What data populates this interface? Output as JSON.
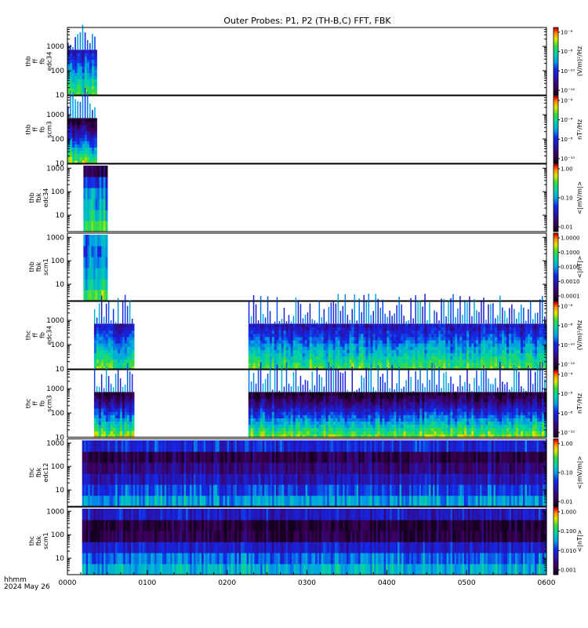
{
  "chart_data": {
    "type": "heatmap",
    "title": "Outer Probes: P1, P2 (TH-B,C) FFT, FBK",
    "time_unit_label": "hhmm",
    "date_label": "2024 May 26",
    "x_ticks": [
      "0000",
      "0100",
      "0200",
      "0300",
      "0400",
      "0500",
      "0600"
    ],
    "x_range_minutes": [
      0,
      360
    ],
    "panels": [
      {
        "ylabel": [
          "thb",
          "ff",
          "fb",
          "edc34"
        ],
        "yticks": [
          "10",
          "100",
          "1000"
        ],
        "ylim": [
          10,
          6000
        ],
        "scale": "log",
        "colorbar": {
          "label": "(V/m)²/Hz",
          "ticks": [
            "10⁻⁶",
            "10⁻⁸",
            "10⁻¹⁰",
            "10⁻¹²"
          ]
        },
        "kind": "fft-e",
        "data_intervals_minutes": [
          [
            0,
            22
          ]
        ]
      },
      {
        "ylabel": [
          "thb",
          "ff",
          "fb",
          "scm3"
        ],
        "yticks": [
          "10",
          "100",
          "1000"
        ],
        "ylim": [
          10,
          6000
        ],
        "scale": "log",
        "colorbar": {
          "label": "nT²/Hz",
          "ticks": [
            "10⁻⁴",
            "10⁻⁶",
            "10⁻⁸",
            "10⁻¹⁰"
          ]
        },
        "kind": "fft-b",
        "data_intervals_minutes": [
          [
            0,
            22
          ]
        ]
      },
      {
        "ylabel": [
          "thb",
          "fbk",
          "edc34"
        ],
        "yticks": [
          "10",
          "100",
          "1000"
        ],
        "ylim": [
          2,
          1500
        ],
        "scale": "log",
        "colorbar": {
          "label": "<|mV/m|>",
          "ticks": [
            "1.00",
            "0.10",
            "0.01"
          ]
        },
        "kind": "fbk-e-short",
        "data_intervals_minutes": [
          [
            12,
            30
          ]
        ]
      },
      {
        "ylabel": [
          "thb",
          "fbk",
          "scm1"
        ],
        "yticks": [
          "10",
          "100",
          "1000"
        ],
        "ylim": [
          2,
          1500
        ],
        "scale": "log",
        "colorbar": {
          "label": "<|nT|>",
          "ticks": [
            "1.0000",
            "0.1000",
            "0.0100",
            "0.0010",
            "0.0001"
          ]
        },
        "kind": "fbk-b-short",
        "data_intervals_minutes": [
          [
            12,
            30
          ]
        ]
      },
      {
        "ylabel": [
          "thc",
          "ff",
          "fb",
          "edc34"
        ],
        "yticks": [
          "10",
          "100",
          "1000"
        ],
        "ylim": [
          10,
          6000
        ],
        "scale": "log",
        "colorbar": {
          "label": "(V/m)²/Hz",
          "ticks": [
            "10⁻⁶",
            "10⁻⁸",
            "10⁻¹⁰",
            "10⁻¹²"
          ]
        },
        "kind": "fft-e",
        "data_intervals_minutes": [
          [
            20,
            50
          ],
          [
            136,
            360
          ]
        ]
      },
      {
        "ylabel": [
          "thc",
          "ff",
          "fb",
          "scm3"
        ],
        "yticks": [
          "10",
          "100",
          "1000"
        ],
        "ylim": [
          10,
          6000
        ],
        "scale": "log",
        "colorbar": {
          "label": "nT²/Hz",
          "ticks": [
            "10⁻⁴",
            "10⁻⁶",
            "10⁻⁸",
            "10⁻¹⁰"
          ]
        },
        "kind": "fft-b",
        "data_intervals_minutes": [
          [
            20,
            50
          ],
          [
            136,
            360
          ]
        ]
      },
      {
        "ylabel": [
          "thc",
          "fbk",
          "edc12"
        ],
        "yticks": [
          "10",
          "100",
          "1000"
        ],
        "ylim": [
          2,
          1500
        ],
        "scale": "log",
        "colorbar": {
          "label": "<|mV/m|>",
          "ticks": [
            "1.00",
            "0.10",
            "0.01"
          ]
        },
        "kind": "fbk-e",
        "data_intervals_minutes": [
          [
            11,
            360
          ]
        ]
      },
      {
        "ylabel": [
          "thc",
          "fbk",
          "scm1"
        ],
        "yticks": [
          "10",
          "100",
          "1000"
        ],
        "ylim": [
          2,
          1500
        ],
        "scale": "log",
        "colorbar": {
          "label": "<|nT|>",
          "ticks": [
            "1.000",
            "0.100",
            "0.010",
            "0.001"
          ]
        },
        "kind": "fbk-b",
        "data_intervals_minutes": [
          [
            11,
            360
          ]
        ]
      }
    ]
  }
}
